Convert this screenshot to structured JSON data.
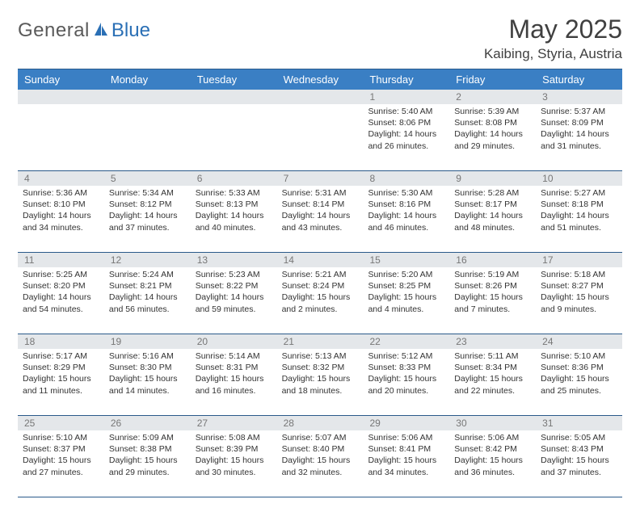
{
  "brand": {
    "name_part1": "General",
    "name_part2": "Blue",
    "text_color_gray": "#5a5a5a",
    "text_color_blue": "#2a6fb5",
    "icon_color": "#2a6fb5"
  },
  "title": "May 2025",
  "location": "Kaibing, Styria, Austria",
  "colors": {
    "header_bg": "#3a7fc4",
    "header_text": "#ffffff",
    "daynum_bg": "#e4e7ea",
    "daynum_text": "#777777",
    "divider": "#2a5a8a",
    "body_text": "#333333",
    "background": "#ffffff"
  },
  "weekdays": [
    "Sunday",
    "Monday",
    "Tuesday",
    "Wednesday",
    "Thursday",
    "Friday",
    "Saturday"
  ],
  "weeks": [
    {
      "nums": [
        "",
        "",
        "",
        "",
        "1",
        "2",
        "3"
      ],
      "days": [
        null,
        null,
        null,
        null,
        {
          "sunrise": "Sunrise: 5:40 AM",
          "sunset": "Sunset: 8:06 PM",
          "daylight": "Daylight: 14 hours and 26 minutes."
        },
        {
          "sunrise": "Sunrise: 5:39 AM",
          "sunset": "Sunset: 8:08 PM",
          "daylight": "Daylight: 14 hours and 29 minutes."
        },
        {
          "sunrise": "Sunrise: 5:37 AM",
          "sunset": "Sunset: 8:09 PM",
          "daylight": "Daylight: 14 hours and 31 minutes."
        }
      ]
    },
    {
      "nums": [
        "4",
        "5",
        "6",
        "7",
        "8",
        "9",
        "10"
      ],
      "days": [
        {
          "sunrise": "Sunrise: 5:36 AM",
          "sunset": "Sunset: 8:10 PM",
          "daylight": "Daylight: 14 hours and 34 minutes."
        },
        {
          "sunrise": "Sunrise: 5:34 AM",
          "sunset": "Sunset: 8:12 PM",
          "daylight": "Daylight: 14 hours and 37 minutes."
        },
        {
          "sunrise": "Sunrise: 5:33 AM",
          "sunset": "Sunset: 8:13 PM",
          "daylight": "Daylight: 14 hours and 40 minutes."
        },
        {
          "sunrise": "Sunrise: 5:31 AM",
          "sunset": "Sunset: 8:14 PM",
          "daylight": "Daylight: 14 hours and 43 minutes."
        },
        {
          "sunrise": "Sunrise: 5:30 AM",
          "sunset": "Sunset: 8:16 PM",
          "daylight": "Daylight: 14 hours and 46 minutes."
        },
        {
          "sunrise": "Sunrise: 5:28 AM",
          "sunset": "Sunset: 8:17 PM",
          "daylight": "Daylight: 14 hours and 48 minutes."
        },
        {
          "sunrise": "Sunrise: 5:27 AM",
          "sunset": "Sunset: 8:18 PM",
          "daylight": "Daylight: 14 hours and 51 minutes."
        }
      ]
    },
    {
      "nums": [
        "11",
        "12",
        "13",
        "14",
        "15",
        "16",
        "17"
      ],
      "days": [
        {
          "sunrise": "Sunrise: 5:25 AM",
          "sunset": "Sunset: 8:20 PM",
          "daylight": "Daylight: 14 hours and 54 minutes."
        },
        {
          "sunrise": "Sunrise: 5:24 AM",
          "sunset": "Sunset: 8:21 PM",
          "daylight": "Daylight: 14 hours and 56 minutes."
        },
        {
          "sunrise": "Sunrise: 5:23 AM",
          "sunset": "Sunset: 8:22 PM",
          "daylight": "Daylight: 14 hours and 59 minutes."
        },
        {
          "sunrise": "Sunrise: 5:21 AM",
          "sunset": "Sunset: 8:24 PM",
          "daylight": "Daylight: 15 hours and 2 minutes."
        },
        {
          "sunrise": "Sunrise: 5:20 AM",
          "sunset": "Sunset: 8:25 PM",
          "daylight": "Daylight: 15 hours and 4 minutes."
        },
        {
          "sunrise": "Sunrise: 5:19 AM",
          "sunset": "Sunset: 8:26 PM",
          "daylight": "Daylight: 15 hours and 7 minutes."
        },
        {
          "sunrise": "Sunrise: 5:18 AM",
          "sunset": "Sunset: 8:27 PM",
          "daylight": "Daylight: 15 hours and 9 minutes."
        }
      ]
    },
    {
      "nums": [
        "18",
        "19",
        "20",
        "21",
        "22",
        "23",
        "24"
      ],
      "days": [
        {
          "sunrise": "Sunrise: 5:17 AM",
          "sunset": "Sunset: 8:29 PM",
          "daylight": "Daylight: 15 hours and 11 minutes."
        },
        {
          "sunrise": "Sunrise: 5:16 AM",
          "sunset": "Sunset: 8:30 PM",
          "daylight": "Daylight: 15 hours and 14 minutes."
        },
        {
          "sunrise": "Sunrise: 5:14 AM",
          "sunset": "Sunset: 8:31 PM",
          "daylight": "Daylight: 15 hours and 16 minutes."
        },
        {
          "sunrise": "Sunrise: 5:13 AM",
          "sunset": "Sunset: 8:32 PM",
          "daylight": "Daylight: 15 hours and 18 minutes."
        },
        {
          "sunrise": "Sunrise: 5:12 AM",
          "sunset": "Sunset: 8:33 PM",
          "daylight": "Daylight: 15 hours and 20 minutes."
        },
        {
          "sunrise": "Sunrise: 5:11 AM",
          "sunset": "Sunset: 8:34 PM",
          "daylight": "Daylight: 15 hours and 22 minutes."
        },
        {
          "sunrise": "Sunrise: 5:10 AM",
          "sunset": "Sunset: 8:36 PM",
          "daylight": "Daylight: 15 hours and 25 minutes."
        }
      ]
    },
    {
      "nums": [
        "25",
        "26",
        "27",
        "28",
        "29",
        "30",
        "31"
      ],
      "days": [
        {
          "sunrise": "Sunrise: 5:10 AM",
          "sunset": "Sunset: 8:37 PM",
          "daylight": "Daylight: 15 hours and 27 minutes."
        },
        {
          "sunrise": "Sunrise: 5:09 AM",
          "sunset": "Sunset: 8:38 PM",
          "daylight": "Daylight: 15 hours and 29 minutes."
        },
        {
          "sunrise": "Sunrise: 5:08 AM",
          "sunset": "Sunset: 8:39 PM",
          "daylight": "Daylight: 15 hours and 30 minutes."
        },
        {
          "sunrise": "Sunrise: 5:07 AM",
          "sunset": "Sunset: 8:40 PM",
          "daylight": "Daylight: 15 hours and 32 minutes."
        },
        {
          "sunrise": "Sunrise: 5:06 AM",
          "sunset": "Sunset: 8:41 PM",
          "daylight": "Daylight: 15 hours and 34 minutes."
        },
        {
          "sunrise": "Sunrise: 5:06 AM",
          "sunset": "Sunset: 8:42 PM",
          "daylight": "Daylight: 15 hours and 36 minutes."
        },
        {
          "sunrise": "Sunrise: 5:05 AM",
          "sunset": "Sunset: 8:43 PM",
          "daylight": "Daylight: 15 hours and 37 minutes."
        }
      ]
    }
  ]
}
